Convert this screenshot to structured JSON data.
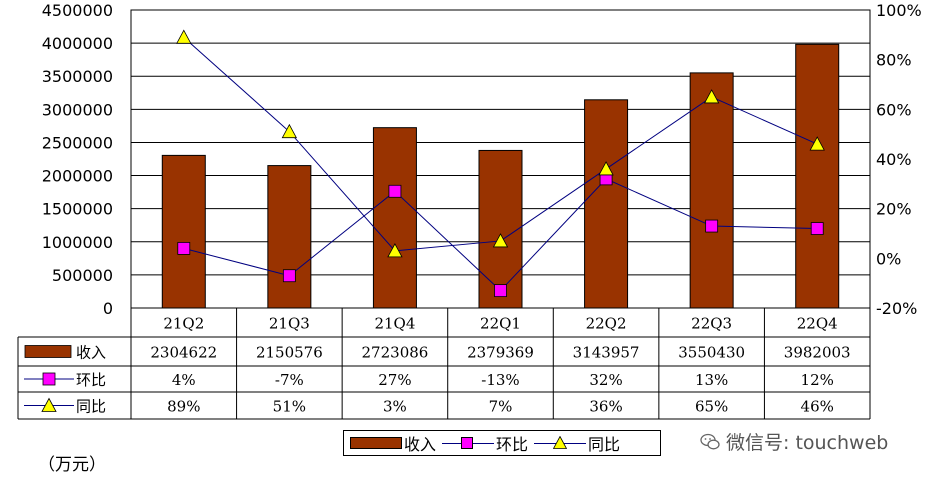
{
  "chart_data": {
    "type": "bar",
    "categories": [
      "21Q2",
      "21Q3",
      "21Q4",
      "22Q1",
      "22Q2",
      "22Q3",
      "22Q4"
    ],
    "series": [
      {
        "name": "收入",
        "type": "bar",
        "axis": "left",
        "values": [
          2304622,
          2150576,
          2723086,
          2379369,
          3143957,
          3550430,
          3982003
        ],
        "labels": [
          "2304622",
          "2150576",
          "2723086",
          "2379369",
          "3143957",
          "3550430",
          "3982003"
        ]
      },
      {
        "name": "环比",
        "type": "line",
        "axis": "right",
        "values": [
          4,
          -7,
          27,
          -13,
          32,
          13,
          12
        ],
        "labels": [
          "4%",
          "-7%",
          "27%",
          "-13%",
          "32%",
          "13%",
          "12%"
        ]
      },
      {
        "name": "同比",
        "type": "line",
        "axis": "right",
        "values": [
          89,
          51,
          3,
          7,
          36,
          65,
          46
        ],
        "labels": [
          "89%",
          "51%",
          "3%",
          "7%",
          "36%",
          "65%",
          "46%"
        ]
      }
    ],
    "left_axis": {
      "ylim": [
        0,
        4500000
      ],
      "ticks": [
        0,
        500000,
        1000000,
        1500000,
        2000000,
        2500000,
        3000000,
        3500000,
        4000000,
        4500000
      ],
      "tick_labels": [
        "0",
        "500000",
        "1000000",
        "1500000",
        "2000000",
        "2500000",
        "3000000",
        "3500000",
        "4000000",
        "4500000"
      ]
    },
    "right_axis": {
      "ylim": [
        -20,
        100
      ],
      "ticks": [
        -20,
        0,
        20,
        40,
        60,
        80,
        100
      ],
      "tick_labels": [
        "-20%",
        "0%",
        "20%",
        "40%",
        "60%",
        "80%",
        "100%"
      ]
    },
    "grid": true,
    "legend": "bottom",
    "unit_label": "（万元）"
  },
  "legend": {
    "revenue": "收入",
    "qoq": "环比",
    "yoy": "同比"
  },
  "watermark": "微信号: touchweb",
  "colors": {
    "bar": "#993300",
    "qoq_marker": "#ff00ff",
    "yoy_marker": "#ffff00",
    "line": "#000080"
  }
}
